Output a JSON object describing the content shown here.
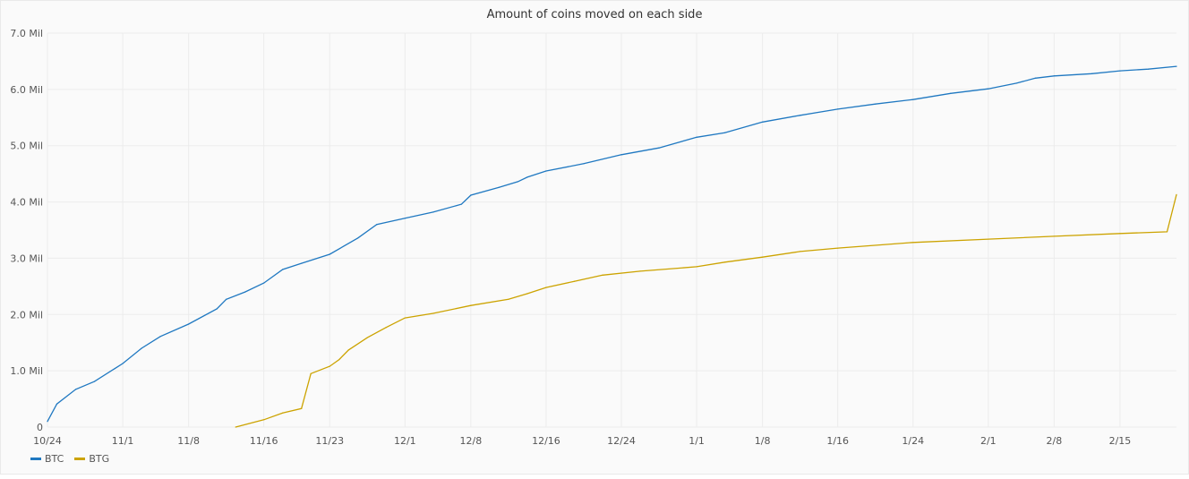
{
  "chart_data": {
    "type": "line",
    "title": "Amount of coins moved on each side",
    "xlabel": "",
    "ylabel": "",
    "ylim": [
      0,
      7
    ],
    "y_unit": "Mil",
    "y_ticks": [
      "0",
      "1.0 Mil",
      "2.0 Mil",
      "3.0 Mil",
      "4.0 Mil",
      "5.0 Mil",
      "6.0 Mil",
      "7.0 Mil"
    ],
    "x_ticks": [
      "10/24",
      "11/1",
      "11/8",
      "11/16",
      "11/23",
      "12/1",
      "12/8",
      "12/16",
      "12/24",
      "1/1",
      "1/8",
      "1/16",
      "1/24",
      "2/1",
      "2/8",
      "2/15"
    ],
    "xlim": [
      "10/24",
      "2/21"
    ],
    "grid": true,
    "legend": "bottom-left",
    "series": [
      {
        "name": "BTC",
        "color": "#1f78c1",
        "x": [
          "10/24",
          "10/25",
          "10/27",
          "10/29",
          "11/1",
          "11/3",
          "11/5",
          "11/8",
          "11/11",
          "11/12",
          "11/14",
          "11/16",
          "11/18",
          "11/20",
          "11/23",
          "11/26",
          "11/28",
          "12/1",
          "12/4",
          "12/7",
          "12/8",
          "12/11",
          "12/13",
          "12/14",
          "12/16",
          "12/20",
          "12/24",
          "12/28",
          "1/1",
          "1/4",
          "1/8",
          "1/12",
          "1/16",
          "1/20",
          "1/24",
          "1/28",
          "2/1",
          "2/4",
          "2/6",
          "2/8",
          "2/12",
          "2/15",
          "2/18",
          "2/21"
        ],
        "values": [
          0.1,
          0.41,
          0.67,
          0.81,
          1.13,
          1.4,
          1.61,
          1.83,
          2.1,
          2.27,
          2.4,
          2.56,
          2.8,
          2.91,
          3.07,
          3.36,
          3.6,
          3.71,
          3.82,
          3.96,
          4.12,
          4.26,
          4.36,
          4.44,
          4.55,
          4.68,
          4.84,
          4.96,
          5.15,
          5.23,
          5.42,
          5.54,
          5.65,
          5.74,
          5.82,
          5.93,
          6.01,
          6.11,
          6.2,
          6.24,
          6.28,
          6.33,
          6.36,
          6.41
        ]
      },
      {
        "name": "BTG",
        "color": "#cca300",
        "x": [
          "11/13",
          "11/16",
          "11/18",
          "11/20",
          "11/21",
          "11/23",
          "11/24",
          "11/25",
          "11/27",
          "11/29",
          "12/1",
          "12/4",
          "12/8",
          "12/12",
          "12/14",
          "12/16",
          "12/19",
          "12/22",
          "12/26",
          "1/1",
          "1/4",
          "1/8",
          "1/12",
          "1/16",
          "1/24",
          "2/1",
          "2/8",
          "2/15",
          "2/20",
          "2/21"
        ],
        "values": [
          0,
          0.13,
          0.25,
          0.33,
          0.95,
          1.08,
          1.2,
          1.37,
          1.59,
          1.77,
          1.94,
          2.02,
          2.16,
          2.27,
          2.37,
          2.48,
          2.59,
          2.7,
          2.77,
          2.85,
          2.93,
          3.02,
          3.12,
          3.18,
          3.28,
          3.34,
          3.39,
          3.44,
          3.47,
          4.13
        ]
      }
    ]
  }
}
